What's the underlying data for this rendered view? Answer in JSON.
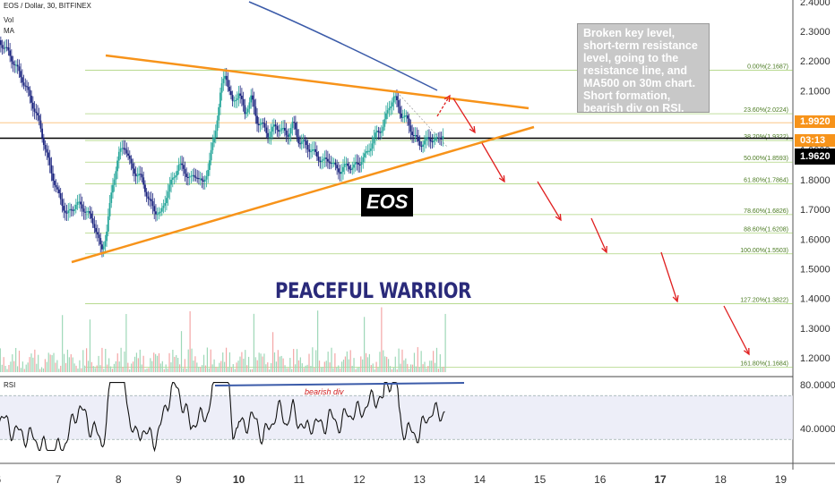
{
  "header": {
    "line1": "EOS / Dollar, 30, BITFINEX",
    "line2": "Vol",
    "line3": "MA"
  },
  "rsi_label": "RSI",
  "note": "Broken key level, short-term resistance level, going to the resistance line, and MA500 on 30m chart. Short formation, bearish div on RSI.",
  "eos_label": "EOS",
  "watermark": "PEACEFUL WARRIOR",
  "bearish_div": "bearish div",
  "price_tags": [
    {
      "value": "1.9920",
      "color": "#f7931a"
    },
    {
      "value": "03:13",
      "color": "#f7931a"
    },
    {
      "value": "1.9620",
      "color": "#000000"
    }
  ],
  "colors": {
    "bull": "#26a69a",
    "bear": "#1a237e",
    "trend": "#f7931a",
    "ma": "#3b5ba9",
    "arrow": "#e02020",
    "fib": "#8bc34a"
  },
  "chart_data": {
    "type": "candlestick",
    "price_axis": {
      "min": 1.1,
      "max": 2.4,
      "ticks": [
        "1.2000",
        "1.3000",
        "1.4000",
        "1.5000",
        "1.6000",
        "1.7000",
        "1.8000",
        "1.9000",
        "2.0000",
        "2.1000",
        "2.2000",
        "2.3000",
        "2.4000"
      ]
    },
    "time_axis": {
      "ticks": [
        "6",
        "7",
        "8",
        "9",
        "10",
        "11",
        "12",
        "13",
        "14",
        "15",
        "16",
        "17",
        "18",
        "19"
      ],
      "bold": [
        "10",
        "17"
      ]
    },
    "fib_levels": [
      {
        "label": "0.00%(2.1687)",
        "price": 2.1687
      },
      {
        "label": "23.60%(2.0224)",
        "price": 2.0224
      },
      {
        "label": "38.20%(1.9322)",
        "price": 1.9322
      },
      {
        "label": "50.00%(1.8593)",
        "price": 1.8593
      },
      {
        "label": "61.80%(1.7864)",
        "price": 1.7864
      },
      {
        "label": "78.60%(1.6826)",
        "price": 1.6826
      },
      {
        "label": "88.60%(1.6208)",
        "price": 1.6208
      },
      {
        "label": "100.00%(1.5503)",
        "price": 1.5503
      },
      {
        "label": "127.20%(1.3822)",
        "price": 1.3822
      },
      {
        "label": "161.80%(1.1684)",
        "price": 1.1684
      }
    ],
    "horizontal_level": 1.94,
    "close_path": [
      [
        6.0,
        2.27
      ],
      [
        6.1,
        2.25
      ],
      [
        6.25,
        2.2
      ],
      [
        6.4,
        2.14
      ],
      [
        6.55,
        2.07
      ],
      [
        6.7,
        1.98
      ],
      [
        6.85,
        1.85
      ],
      [
        7.0,
        1.75
      ],
      [
        7.15,
        1.68
      ],
      [
        7.3,
        1.72
      ],
      [
        7.45,
        1.7
      ],
      [
        7.6,
        1.65
      ],
      [
        7.72,
        1.56
      ],
      [
        7.8,
        1.62
      ],
      [
        7.9,
        1.78
      ],
      [
        8.0,
        1.88
      ],
      [
        8.1,
        1.92
      ],
      [
        8.2,
        1.85
      ],
      [
        8.3,
        1.82
      ],
      [
        8.4,
        1.8
      ],
      [
        8.5,
        1.73
      ],
      [
        8.6,
        1.7
      ],
      [
        8.7,
        1.68
      ],
      [
        8.8,
        1.75
      ],
      [
        8.9,
        1.8
      ],
      [
        9.0,
        1.85
      ],
      [
        9.1,
        1.83
      ],
      [
        9.2,
        1.8
      ],
      [
        9.3,
        1.82
      ],
      [
        9.4,
        1.78
      ],
      [
        9.5,
        1.85
      ],
      [
        9.6,
        1.95
      ],
      [
        9.7,
        2.1
      ],
      [
        9.78,
        2.16
      ],
      [
        9.9,
        2.05
      ],
      [
        10.0,
        2.1
      ],
      [
        10.1,
        2.02
      ],
      [
        10.2,
        2.08
      ],
      [
        10.3,
        2.0
      ],
      [
        10.4,
        1.98
      ],
      [
        10.5,
        1.95
      ],
      [
        10.6,
        1.98
      ],
      [
        10.7,
        1.97
      ],
      [
        10.8,
        1.95
      ],
      [
        10.9,
        1.99
      ],
      [
        11.0,
        1.93
      ],
      [
        11.1,
        1.92
      ],
      [
        11.2,
        1.9
      ],
      [
        11.3,
        1.88
      ],
      [
        11.4,
        1.86
      ],
      [
        11.5,
        1.87
      ],
      [
        11.6,
        1.84
      ],
      [
        11.7,
        1.83
      ],
      [
        11.8,
        1.85
      ],
      [
        11.9,
        1.84
      ],
      [
        12.0,
        1.86
      ],
      [
        12.1,
        1.88
      ],
      [
        12.2,
        1.92
      ],
      [
        12.3,
        1.96
      ],
      [
        12.4,
        1.98
      ],
      [
        12.5,
        2.05
      ],
      [
        12.58,
        2.08
      ],
      [
        12.7,
        2.02
      ],
      [
        12.8,
        2.0
      ],
      [
        12.9,
        1.95
      ],
      [
        13.0,
        1.92
      ],
      [
        13.1,
        1.93
      ],
      [
        13.2,
        1.94
      ],
      [
        13.3,
        1.93
      ],
      [
        13.4,
        1.96
      ]
    ],
    "rsi": {
      "levels": [
        70,
        30
      ],
      "ticks": [
        "80.0000",
        "40.0000"
      ]
    },
    "annotations": [
      "descending resistance line",
      "ascending support line",
      "MA500",
      "projected decline arrows"
    ]
  }
}
